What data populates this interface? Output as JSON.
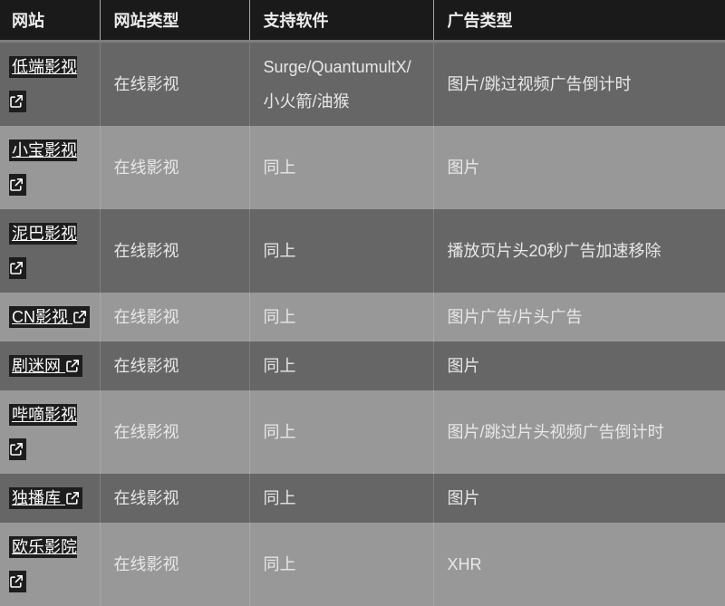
{
  "theme": {
    "header_bg": "#1a1a1a",
    "row_dark_bg": "#666666",
    "row_light_bg": "#989898",
    "link_bg": "#1d1d1d",
    "body_text": "#e8e8e8",
    "header_text": "#ededed",
    "link_text": "#fbfbfb"
  },
  "table": {
    "link_icon": "external-link-icon",
    "columns": [
      {
        "label": "网站"
      },
      {
        "label": "网站类型"
      },
      {
        "label": "支持软件"
      },
      {
        "label": "广告类型"
      }
    ],
    "rows": [
      {
        "site": "低端影视",
        "icon_on_new_line": true,
        "shade": "dark",
        "type": "在线影视",
        "software": "Surge/QuantumultX/小火箭/油猴",
        "ad_type": "图片/跳过视频广告倒计时"
      },
      {
        "site": "小宝影视",
        "icon_on_new_line": true,
        "shade": "light",
        "type": "在线影视",
        "software": "同上",
        "ad_type": "图片"
      },
      {
        "site": "泥巴影视",
        "icon_on_new_line": true,
        "shade": "dark",
        "type": "在线影视",
        "software": "同上",
        "ad_type": "播放页片头20秒广告加速移除"
      },
      {
        "site": "CN影视",
        "icon_on_new_line": false,
        "shade": "light",
        "type": "在线影视",
        "software": "同上",
        "ad_type": "图片广告/片头广告"
      },
      {
        "site": "剧迷网",
        "icon_on_new_line": false,
        "shade": "dark",
        "type": "在线影视",
        "software": "同上",
        "ad_type": "图片"
      },
      {
        "site": "哔嘀影视",
        "icon_on_new_line": true,
        "shade": "light",
        "type": "在线影视",
        "software": "同上",
        "ad_type": "图片/跳过片头视频广告倒计时"
      },
      {
        "site": "独播库",
        "icon_on_new_line": false,
        "shade": "dark",
        "type": "在线影视",
        "software": "同上",
        "ad_type": "图片"
      },
      {
        "site": "欧乐影院",
        "icon_on_new_line": true,
        "shade": "light",
        "type": "在线影视",
        "software": "同上",
        "ad_type": "XHR"
      }
    ]
  }
}
